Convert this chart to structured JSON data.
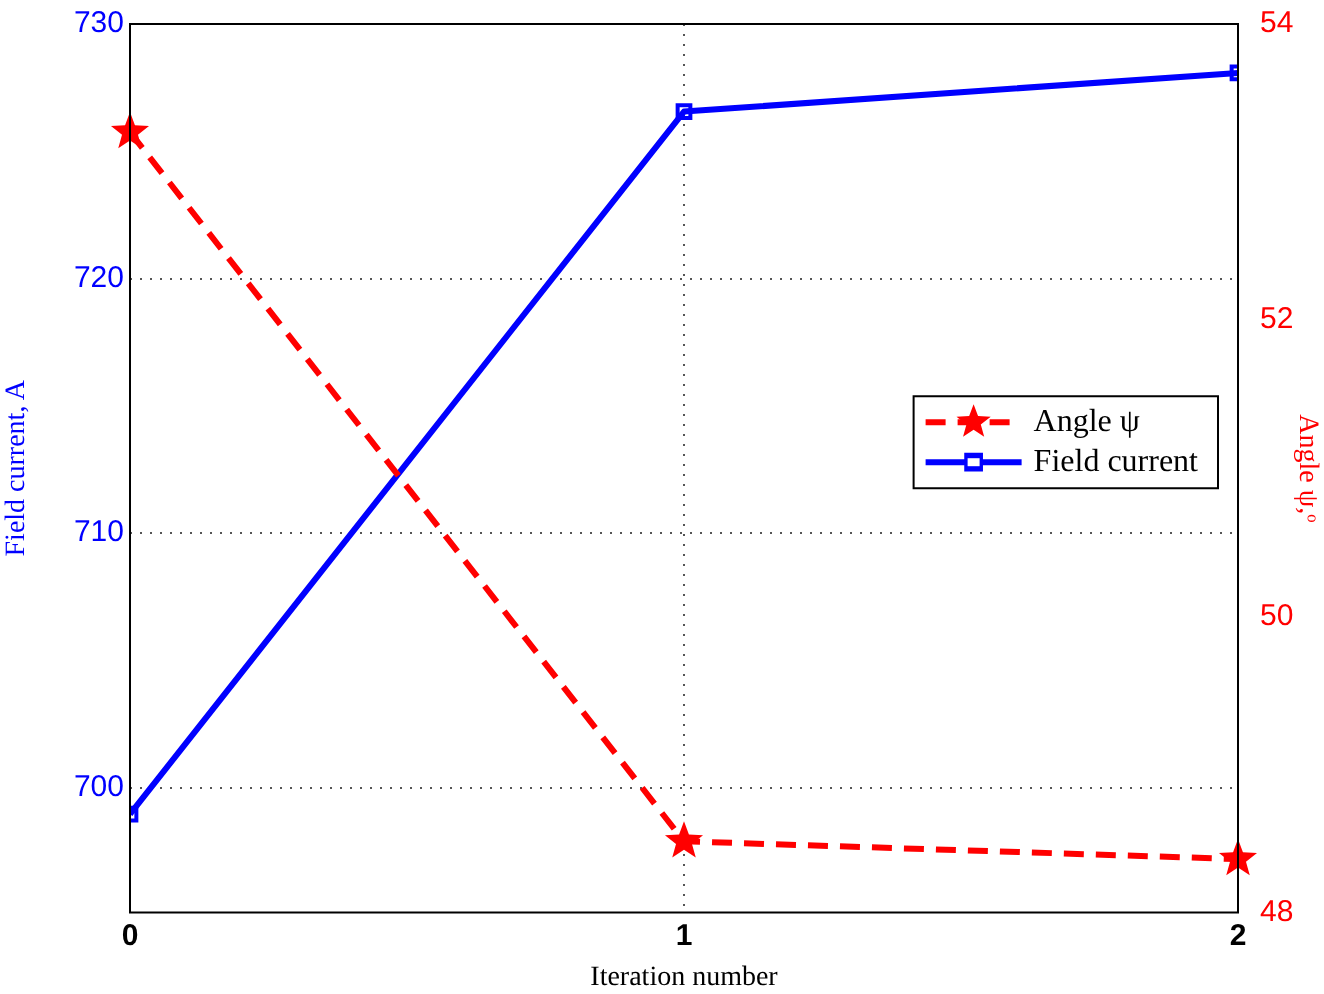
{
  "chart_data": {
    "type": "line",
    "xlabel": "Iteration number",
    "ylabel": "Field current, A",
    "y2label": "Angle ψ,ᵒ",
    "x": [
      0,
      1,
      2
    ],
    "xlim": [
      0,
      2
    ],
    "xticks": [
      0,
      1,
      2
    ],
    "ylim": [
      695.1,
      730
    ],
    "yticks": [
      700,
      710,
      720,
      730
    ],
    "y2lim": [
      48,
      54
    ],
    "y2ticks": [
      48,
      50,
      52,
      54
    ],
    "grid": true,
    "legend": "right",
    "series": [
      {
        "name": "Angle ψ",
        "color": "#ff0000",
        "axis": "y2",
        "marker": "star",
        "line_style": "dashed",
        "values": [
          53.27,
          48.48,
          48.36
        ]
      },
      {
        "name": "Field current",
        "color": "#0000ff",
        "axis": "y",
        "marker": "square",
        "line_style": "solid",
        "values": [
          698.96,
          726.56,
          728.08
        ]
      }
    ]
  }
}
